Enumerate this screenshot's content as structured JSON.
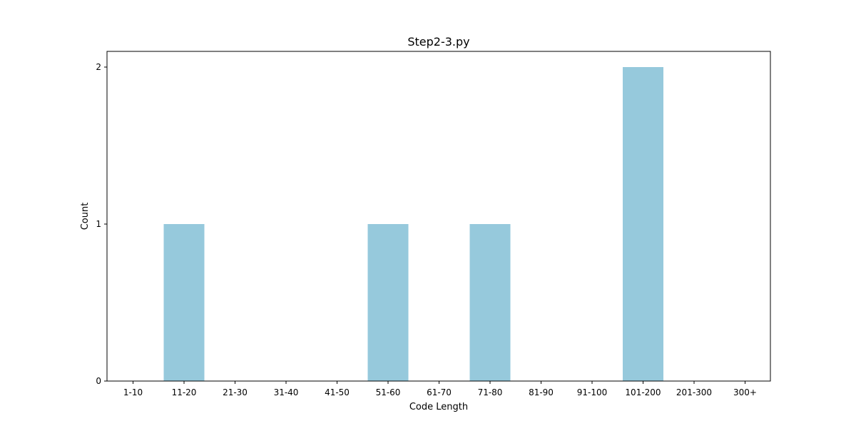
{
  "chart_data": {
    "type": "bar",
    "title": "Step2-3.py",
    "xlabel": "Code Length",
    "ylabel": "Count",
    "categories": [
      "1-10",
      "11-20",
      "21-30",
      "31-40",
      "41-50",
      "51-60",
      "61-70",
      "71-80",
      "81-90",
      "91-100",
      "101-200",
      "201-300",
      "300+"
    ],
    "values": [
      0,
      1,
      0,
      0,
      0,
      1,
      0,
      1,
      0,
      0,
      2,
      0,
      0
    ],
    "yticks": [
      0,
      1,
      2
    ],
    "ylim": [
      0,
      2.1
    ],
    "bar_color": "#96c9dc",
    "grid": false,
    "legend": "none"
  }
}
